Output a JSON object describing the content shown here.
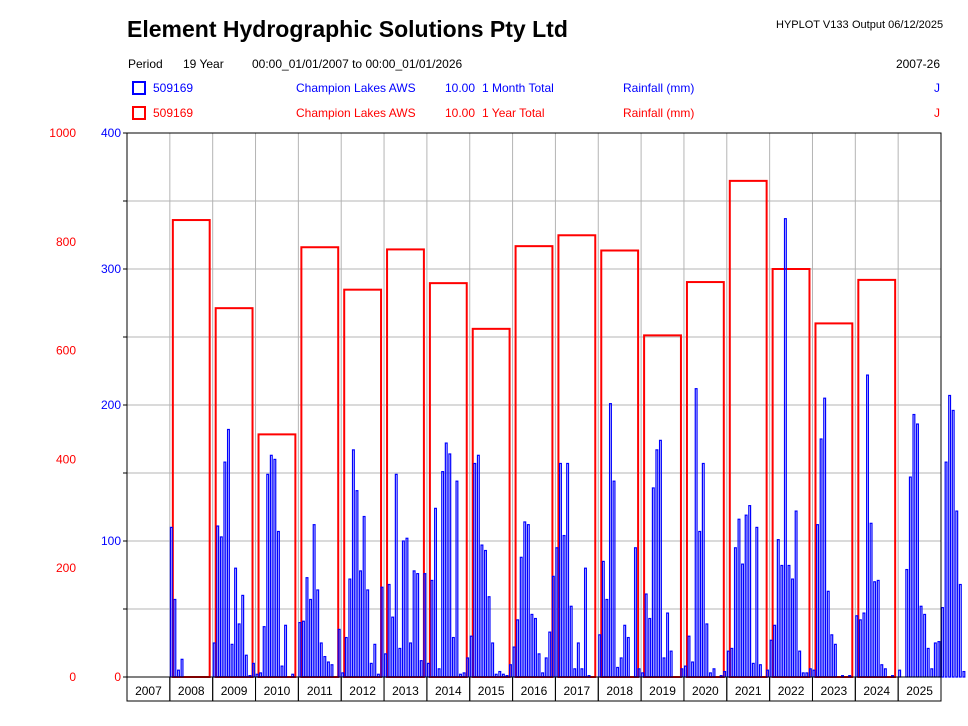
{
  "header": {
    "title": "Element Hydrographic Solutions Pty Ltd",
    "program": "HYPLOT V133",
    "output": "Output 06/12/2025",
    "period_label": "Period",
    "period_length": "19 Year",
    "period_range": "00:00_01/01/2007 to 00:00_01/01/2026",
    "period_years": "2007-26"
  },
  "legend": [
    {
      "site": "509169",
      "name": "Champion Lakes AWS",
      "code": "10.00",
      "stat": "1 Month Total",
      "variable": "Rainfall (mm)",
      "flag": "J",
      "color": "#0000ff"
    },
    {
      "site": "509169",
      "name": "Champion Lakes AWS",
      "code": "10.00",
      "stat": "1 Year Total",
      "variable": "Rainfall (mm)",
      "flag": "J",
      "color": "#ff0000"
    }
  ],
  "chart_data": {
    "type": "bar",
    "x_categories": [
      "2007",
      "2008",
      "2009",
      "2010",
      "2011",
      "2012",
      "2013",
      "2014",
      "2015",
      "2016",
      "2017",
      "2018",
      "2019",
      "2020",
      "2021",
      "2022",
      "2023",
      "2024",
      "2025"
    ],
    "y_left": {
      "ticks": [
        0,
        200,
        400,
        600,
        800,
        1000
      ],
      "ylim": [
        0,
        1000
      ],
      "color": "#ff0000"
    },
    "y_right": {
      "ticks": [
        100,
        200,
        300,
        400
      ],
      "tick_labels_extra": [
        0
      ],
      "ylim": [
        0,
        400
      ],
      "color": "#0000ff"
    },
    "grid": true,
    "series": [
      {
        "name": "1 Year Total",
        "color": "#ff0000",
        "axis": "left",
        "x": [
          "2008",
          "2009",
          "2010",
          "2011",
          "2012",
          "2013",
          "2014",
          "2015",
          "2016",
          "2017",
          "2018",
          "2019",
          "2020",
          "2021",
          "2022",
          "2023",
          "2024"
        ],
        "values": [
          840,
          678,
          446,
          790,
          712,
          786,
          724,
          640,
          792,
          812,
          784,
          628,
          726,
          912,
          750,
          650,
          730
        ]
      },
      {
        "name": "1 Month Total",
        "color": "#0000ff",
        "axis": "right",
        "monthly": [
          [
            0,
            0,
            0,
            0,
            0,
            0,
            0,
            0,
            0,
            0,
            0,
            0
          ],
          [
            110,
            57,
            5,
            13,
            0,
            0,
            0,
            0,
            0,
            0,
            0,
            0
          ],
          [
            25,
            111,
            103,
            158,
            182,
            24,
            80,
            39,
            60,
            16,
            1,
            10
          ],
          [
            2,
            3,
            37,
            149,
            163,
            160,
            107,
            8,
            38,
            0,
            2,
            0
          ],
          [
            40,
            41,
            73,
            57,
            112,
            64,
            25,
            15,
            11,
            9,
            0,
            35
          ],
          [
            3,
            29,
            72,
            167,
            137,
            78,
            118,
            64,
            10,
            24,
            2,
            66
          ],
          [
            17,
            68,
            44,
            149,
            21,
            100,
            102,
            25,
            78,
            76,
            12,
            76
          ],
          [
            10,
            71,
            124,
            6,
            151,
            172,
            164,
            29,
            144,
            2,
            3,
            14
          ],
          [
            30,
            157,
            163,
            97,
            93,
            59,
            25,
            2,
            4,
            2,
            1,
            9
          ],
          [
            22,
            42,
            88,
            114,
            112,
            46,
            43,
            17,
            3,
            14,
            33,
            74
          ],
          [
            95,
            157,
            104,
            157,
            52,
            6,
            25,
            6,
            80,
            1,
            0,
            0
          ],
          [
            31,
            85,
            57,
            201,
            144,
            7,
            14,
            38,
            29,
            0,
            95,
            6
          ],
          [
            3,
            61,
            43,
            139,
            167,
            174,
            14,
            47,
            19,
            0,
            0,
            6
          ],
          [
            8,
            30,
            11,
            212,
            107,
            157,
            39,
            3,
            6,
            0,
            1,
            4
          ],
          [
            19,
            21,
            95,
            116,
            83,
            119,
            126,
            10,
            110,
            9,
            0,
            5
          ],
          [
            27,
            38,
            101,
            82,
            337,
            82,
            72,
            122,
            19,
            3,
            3,
            6
          ],
          [
            5,
            112,
            175,
            205,
            63,
            31,
            24,
            0,
            1,
            0,
            1,
            0
          ],
          [
            45,
            42,
            47,
            222,
            113,
            70,
            71,
            9,
            6,
            0,
            1,
            0
          ],
          [
            5,
            0,
            79,
            147,
            193,
            186,
            52,
            46,
            21,
            6,
            25,
            26
          ],
          [
            51,
            158,
            207,
            196,
            122,
            68,
            4,
            0,
            0,
            0,
            0,
            0
          ]
        ]
      }
    ]
  }
}
